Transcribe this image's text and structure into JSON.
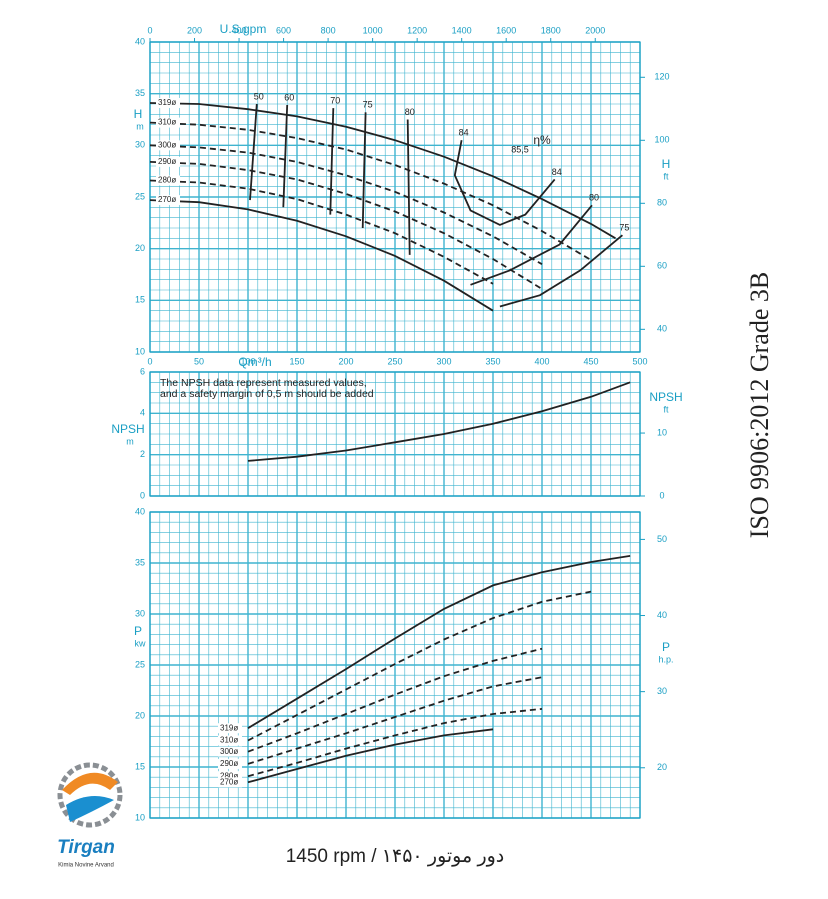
{
  "chart_data": [
    {
      "type": "line",
      "x_label": "Qm³/h",
      "x2_label": "U.S.gpm",
      "y_label": "H",
      "y_unit": "m",
      "y2_label": "H",
      "y2_unit": "ft",
      "x": [
        0,
        50,
        100,
        150,
        200,
        250,
        300,
        350,
        400,
        450,
        475
      ],
      "xlim": [
        0,
        500
      ],
      "xticks": [
        0,
        50,
        100,
        150,
        200,
        250,
        300,
        350,
        400,
        450,
        500
      ],
      "x2lim": [
        0,
        2201
      ],
      "x2ticks": [
        0,
        200,
        400,
        600,
        800,
        1000,
        1200,
        1400,
        1600,
        1800,
        2000
      ],
      "ylim": [
        10,
        40
      ],
      "yticks": [
        10,
        15,
        20,
        25,
        30,
        35,
        40
      ],
      "y2lim": [
        32.8,
        131.2
      ],
      "y2ticks": [
        40,
        60,
        80,
        100,
        120
      ],
      "grid": true,
      "series": [
        {
          "name": "319ø",
          "color": "#222222",
          "style": "solid",
          "values": [
            34.1,
            34.0,
            33.5,
            32.8,
            31.8,
            30.5,
            28.9,
            27.0,
            24.8,
            22.4,
            21.0
          ]
        },
        {
          "name": "310ø",
          "color": "#222222",
          "style": "dashed",
          "values": [
            32.2,
            32.0,
            31.5,
            30.7,
            29.6,
            28.1,
            26.3,
            24.2,
            21.7,
            18.9,
            null
          ]
        },
        {
          "name": "300ø",
          "color": "#222222",
          "style": "dashed",
          "values": [
            30.0,
            29.8,
            29.3,
            28.4,
            27.1,
            25.5,
            23.5,
            21.2,
            18.5,
            null,
            null
          ]
        },
        {
          "name": "290ø",
          "color": "#222222",
          "style": "dashed",
          "values": [
            28.4,
            28.2,
            27.6,
            26.7,
            25.3,
            23.6,
            21.5,
            19.0,
            16.1,
            null,
            null
          ]
        },
        {
          "name": "280ø",
          "color": "#222222",
          "style": "dashed",
          "values": [
            26.6,
            26.4,
            25.8,
            24.8,
            23.3,
            21.5,
            19.2,
            16.6,
            null,
            null,
            null
          ]
        },
        {
          "name": "270ø",
          "color": "#222222",
          "style": "solid",
          "values": [
            24.7,
            24.5,
            23.8,
            22.7,
            21.2,
            19.3,
            16.9,
            14.0,
            null,
            null,
            null
          ]
        }
      ],
      "efficiency_lines": [
        {
          "name": "50",
          "x": [
            109,
            102
          ],
          "y": [
            34.0,
            24.7
          ]
        },
        {
          "name": "60",
          "x": [
            140,
            136
          ],
          "y": [
            33.9,
            24.0
          ]
        },
        {
          "name": "70",
          "x": [
            187,
            184
          ],
          "y": [
            33.6,
            23.3
          ]
        },
        {
          "name": "75",
          "x": [
            220,
            217
          ],
          "y": [
            33.2,
            22.0
          ]
        },
        {
          "name": "80",
          "x": [
            263,
            265
          ],
          "y": [
            32.5,
            19.4
          ]
        },
        {
          "name": "84",
          "x": [
            318,
            311,
            327,
            357,
            383,
            413
          ],
          "y": [
            30.5,
            27.1,
            23.7,
            22.3,
            23.3,
            26.7
          ]
        },
        {
          "name": "80",
          "x": [
            451,
            418,
            367,
            327
          ],
          "y": [
            24.2,
            20.4,
            17.9,
            16.5
          ]
        },
        {
          "name": "75",
          "x": [
            482,
            439,
            398,
            357
          ],
          "y": [
            21.3,
            17.9,
            15.5,
            14.4
          ]
        }
      ],
      "annotations": [
        "85,5",
        "η%"
      ]
    },
    {
      "type": "line",
      "y_label": "NPSH",
      "y_unit": "m",
      "y2_label": "NPSH",
      "y2_unit": "ft",
      "note": [
        "The NPSH data represent measured values,",
        "and a safety margin of 0,5 m should be added"
      ],
      "x": [
        100,
        150,
        200,
        250,
        300,
        350,
        400,
        450,
        490
      ],
      "xlim": [
        0,
        500
      ],
      "ylim": [
        0,
        6
      ],
      "yticks": [
        0,
        2,
        4,
        6
      ],
      "y2lim": [
        0,
        19.7
      ],
      "y2ticks": [
        0,
        10
      ],
      "grid": true,
      "series": [
        {
          "name": "NPSH",
          "color": "#222222",
          "style": "solid",
          "values": [
            1.7,
            1.9,
            2.2,
            2.6,
            3.0,
            3.5,
            4.1,
            4.8,
            5.5
          ]
        }
      ]
    },
    {
      "type": "line",
      "y_label": "P",
      "y_unit": "kw",
      "y2_label": "P",
      "y2_unit": "h.p.",
      "x": [
        100,
        150,
        200,
        250,
        300,
        350,
        400,
        450,
        490
      ],
      "xlim": [
        0,
        500
      ],
      "ylim": [
        10,
        40
      ],
      "yticks": [
        10,
        15,
        20,
        25,
        30,
        35,
        40
      ],
      "y2lim": [
        13.4,
        53.6
      ],
      "y2ticks": [
        20,
        30,
        40,
        50
      ],
      "grid": true,
      "series": [
        {
          "name": "319ø",
          "color": "#222222",
          "style": "solid",
          "values": [
            18.8,
            21.7,
            24.6,
            27.6,
            30.5,
            32.8,
            34.1,
            35.1,
            35.7
          ]
        },
        {
          "name": "310ø",
          "color": "#222222",
          "style": "dashed",
          "values": [
            17.6,
            20.1,
            22.6,
            25.1,
            27.5,
            29.6,
            31.2,
            32.2,
            null
          ]
        },
        {
          "name": "300ø",
          "color": "#222222",
          "style": "dashed",
          "values": [
            16.5,
            18.3,
            20.2,
            22.1,
            23.9,
            25.4,
            26.6,
            null,
            null
          ]
        },
        {
          "name": "290ø",
          "color": "#222222",
          "style": "dashed",
          "values": [
            15.3,
            16.8,
            18.3,
            19.9,
            21.5,
            22.9,
            23.8,
            null,
            null
          ]
        },
        {
          "name": "280ø",
          "color": "#222222",
          "style": "dashed",
          "values": [
            14.1,
            15.4,
            16.8,
            18.1,
            19.3,
            20.2,
            20.7,
            null,
            null
          ]
        },
        {
          "name": "270ø",
          "color": "#222222",
          "style": "solid",
          "values": [
            13.5,
            14.8,
            16.1,
            17.2,
            18.1,
            18.7,
            null,
            null,
            null
          ]
        }
      ]
    }
  ],
  "document": {
    "side_text": "ISO 9906:2012 Grade 3B",
    "footer": "1450 rpm / ۱۴۵۰ دور موتور",
    "logo": {
      "name": "Tirgan",
      "subtitle": "Kimia Novine Arvand"
    }
  }
}
